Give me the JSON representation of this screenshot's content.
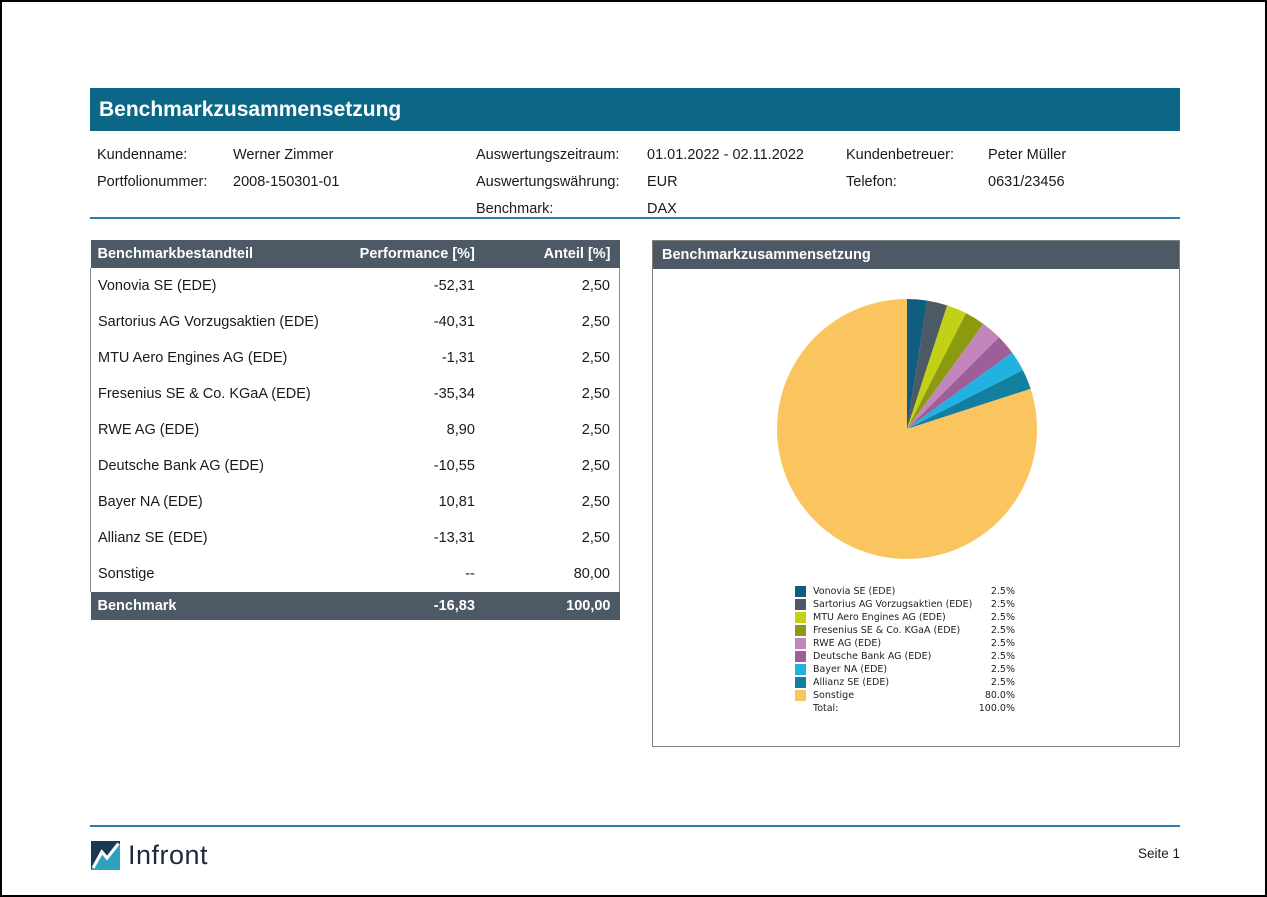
{
  "header": {
    "title": "Benchmarkzusammensetzung"
  },
  "info": {
    "col1": [
      {
        "label": "Kundenname:",
        "value": "Werner Zimmer"
      },
      {
        "label": "Portfolionummer:",
        "value": "2008-150301-01"
      }
    ],
    "col2": [
      {
        "label": "Auswertungszeitraum:",
        "value": "01.01.2022 - 02.11.2022"
      },
      {
        "label": "Auswertungswährung:",
        "value": "EUR"
      },
      {
        "label": "Benchmark:",
        "value": "DAX"
      }
    ],
    "col3": [
      {
        "label": "Kundenbetreuer:",
        "value": "Peter Müller"
      },
      {
        "label": "Telefon:",
        "value": "0631/23456"
      }
    ]
  },
  "table": {
    "headers": [
      "Benchmarkbestandteil",
      "Performance [%]",
      "Anteil [%]"
    ],
    "rows": [
      [
        "Vonovia SE (EDE)",
        "-52,31",
        "2,50"
      ],
      [
        "Sartorius AG Vorzugsaktien (EDE)",
        "-40,31",
        "2,50"
      ],
      [
        "MTU Aero Engines AG (EDE)",
        "-1,31",
        "2,50"
      ],
      [
        "Fresenius SE & Co. KGaA (EDE)",
        "-35,34",
        "2,50"
      ],
      [
        "RWE AG (EDE)",
        "8,90",
        "2,50"
      ],
      [
        "Deutsche Bank AG (EDE)",
        "-10,55",
        "2,50"
      ],
      [
        "Bayer NA (EDE)",
        "10,81",
        "2,50"
      ],
      [
        "Allianz SE (EDE)",
        "-13,31",
        "2,50"
      ],
      [
        "Sonstige",
        "--",
        "80,00"
      ]
    ],
    "footer": [
      "Benchmark",
      "-16,83",
      "100,00"
    ]
  },
  "chart_data": {
    "type": "pie",
    "title": "Benchmarkzusammensetzung",
    "labels": [
      "Vonovia SE (EDE)",
      "Sartorius AG Vorzugsaktien (EDE)",
      "MTU Aero Engines AG (EDE)",
      "Fresenius SE & Co. KGaA (EDE)",
      "RWE AG (EDE)",
      "Deutsche Bank AG (EDE)",
      "Bayer NA (EDE)",
      "Allianz SE (EDE)",
      "Sonstige"
    ],
    "values": [
      2.5,
      2.5,
      2.5,
      2.5,
      2.5,
      2.5,
      2.5,
      2.5,
      80.0
    ],
    "display_values": [
      "2.5%",
      "2.5%",
      "2.5%",
      "2.5%",
      "2.5%",
      "2.5%",
      "2.5%",
      "2.5%",
      "80.0%"
    ],
    "colors": [
      "#0F5E7F",
      "#4D5A66",
      "#C2D116",
      "#8B9A0F",
      "#C286BD",
      "#9D5F99",
      "#22B2E2",
      "#137FA0",
      "#FAC55E"
    ],
    "total_label": "Total:",
    "total_display": "100.0%",
    "start_angle_deg": 0,
    "direction": "clockwise",
    "legend_position": "bottom"
  },
  "footer": {
    "brand": "Infront",
    "page_label": "Seite 1"
  },
  "colors": {
    "title_bar": "#0C6787",
    "table_header": "#4D5A66",
    "divider": "#2E7CA7",
    "panel_border": "#808080",
    "logo_navy": "#1B3A52",
    "logo_teal": "#2EA2BA"
  }
}
